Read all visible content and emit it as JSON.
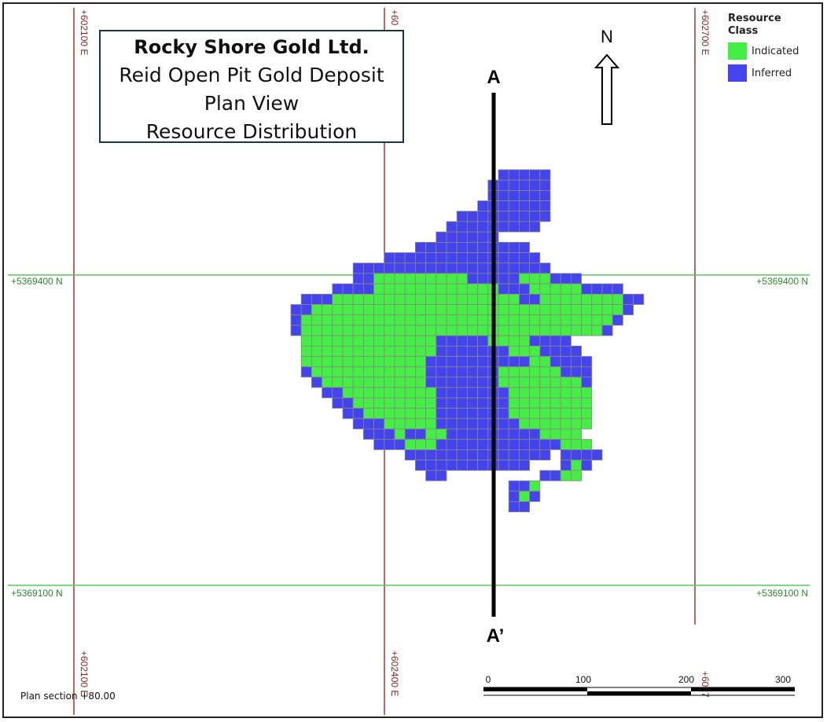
{
  "title": {
    "line1": "Rocky Shore Gold Ltd.",
    "line2": "Reid Open Pit Gold Deposit",
    "line3": "Plan View",
    "line4": "Resource Distribution"
  },
  "legend": {
    "title_line1": "Resource",
    "title_line2": "Class",
    "items": [
      {
        "label": "Indicated",
        "color": "#44ee44"
      },
      {
        "label": "Inferred",
        "color": "#4444ee"
      }
    ]
  },
  "north_label": "N",
  "section_labels": {
    "start": "A",
    "end": "A’"
  },
  "grid_labels": {
    "easting_top": [
      "+602100 E",
      "+60",
      "+602700 E"
    ],
    "easting_bottom": [
      "+602100 E",
      "+602400 E",
      "+6027"
    ],
    "northing": [
      "+5369400 N",
      "+5369100 N"
    ]
  },
  "scale_bar": {
    "ticks": [
      "0",
      "100",
      "200",
      "300"
    ]
  },
  "footer": "Plan section +80.00",
  "colors": {
    "indicated": "#44ee44",
    "inferred": "#4444ee",
    "cell_border": "#888888",
    "easting_line": "#aa3333",
    "northing_line": "#55cc55"
  }
}
